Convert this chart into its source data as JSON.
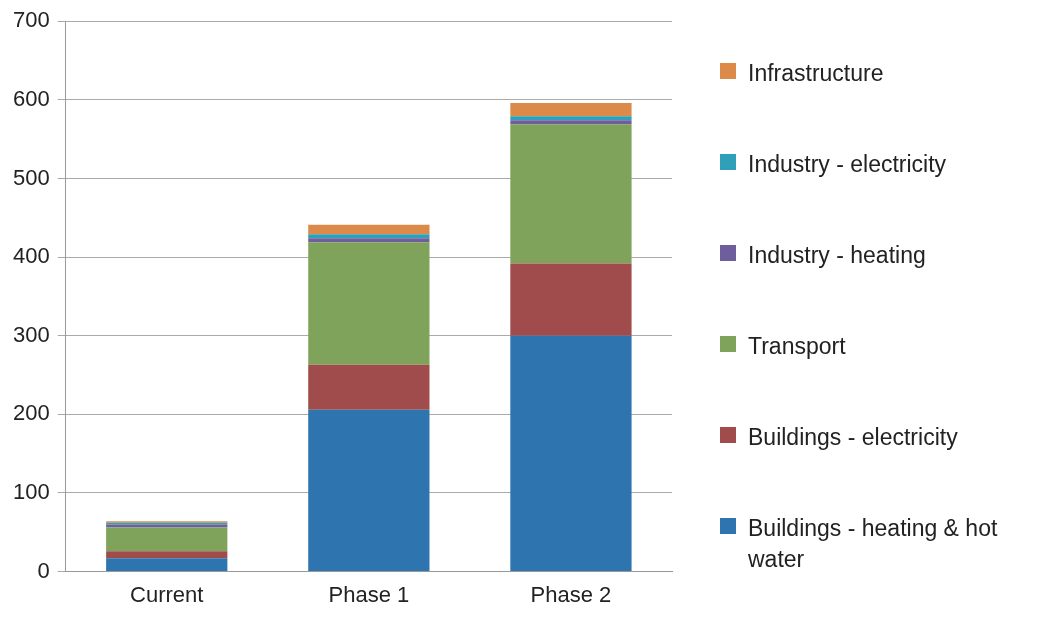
{
  "chart_data": {
    "type": "bar",
    "stacked": true,
    "categories": [
      "Current",
      "Phase 1",
      "Phase 2"
    ],
    "series": [
      {
        "name": "Buildings - heating & hot water",
        "color": "#2e75b0",
        "values": [
          17,
          206,
          300
        ]
      },
      {
        "name": "Buildings - electricity",
        "color": "#a04b4c",
        "values": [
          9,
          57,
          92
        ]
      },
      {
        "name": "Transport",
        "color": "#7fa35a",
        "values": [
          30,
          156,
          177
        ]
      },
      {
        "name": "Industry - heating",
        "color": "#6e5f9c",
        "values": [
          4,
          5,
          5
        ]
      },
      {
        "name": "Industry - electricity",
        "color": "#2fa0b8",
        "values": [
          2,
          5,
          5
        ]
      },
      {
        "name": "Infrastructure",
        "color": "#db8a4a",
        "values": [
          2,
          12,
          17
        ]
      }
    ],
    "ylim": [
      0,
      700
    ],
    "yticks": [
      0,
      100,
      200,
      300,
      400,
      500,
      600,
      700
    ],
    "grid": "y",
    "legend": "right"
  }
}
